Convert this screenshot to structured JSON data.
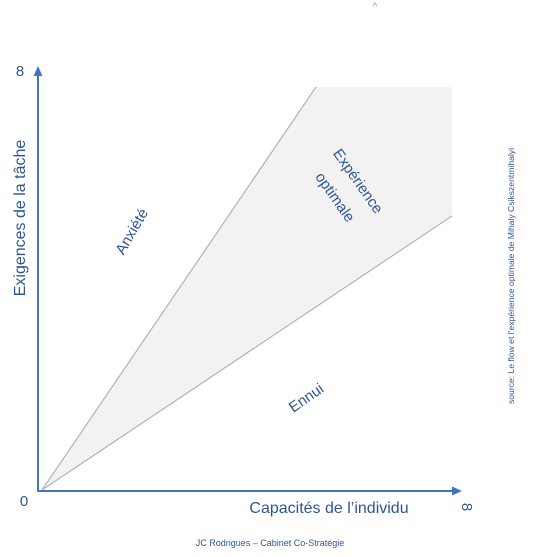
{
  "diagram": {
    "y_axis": {
      "label": "Exigences de la tâche",
      "max_label": "8"
    },
    "x_axis": {
      "label": "Capacités de l’individu",
      "max_label": "8"
    },
    "origin_label": "0",
    "zones": {
      "anxiety": "Anxiété",
      "flow_line1": "Expérience",
      "flow_line2": "optimale",
      "boredom": "Ennui"
    },
    "source_note": "source: Le flow et l’expérience optimale de Mihaly Csikszentmihalyi",
    "footer": "JC Rodrigues – Cabinet Co-Stratégie",
    "top_mark": "^",
    "colors": {
      "axis": "#4472c4",
      "text": "#2f5597",
      "band_fill": "#f2f2f2",
      "band_line": "#a6a6a6",
      "footer_text": "#2f5597"
    }
  }
}
